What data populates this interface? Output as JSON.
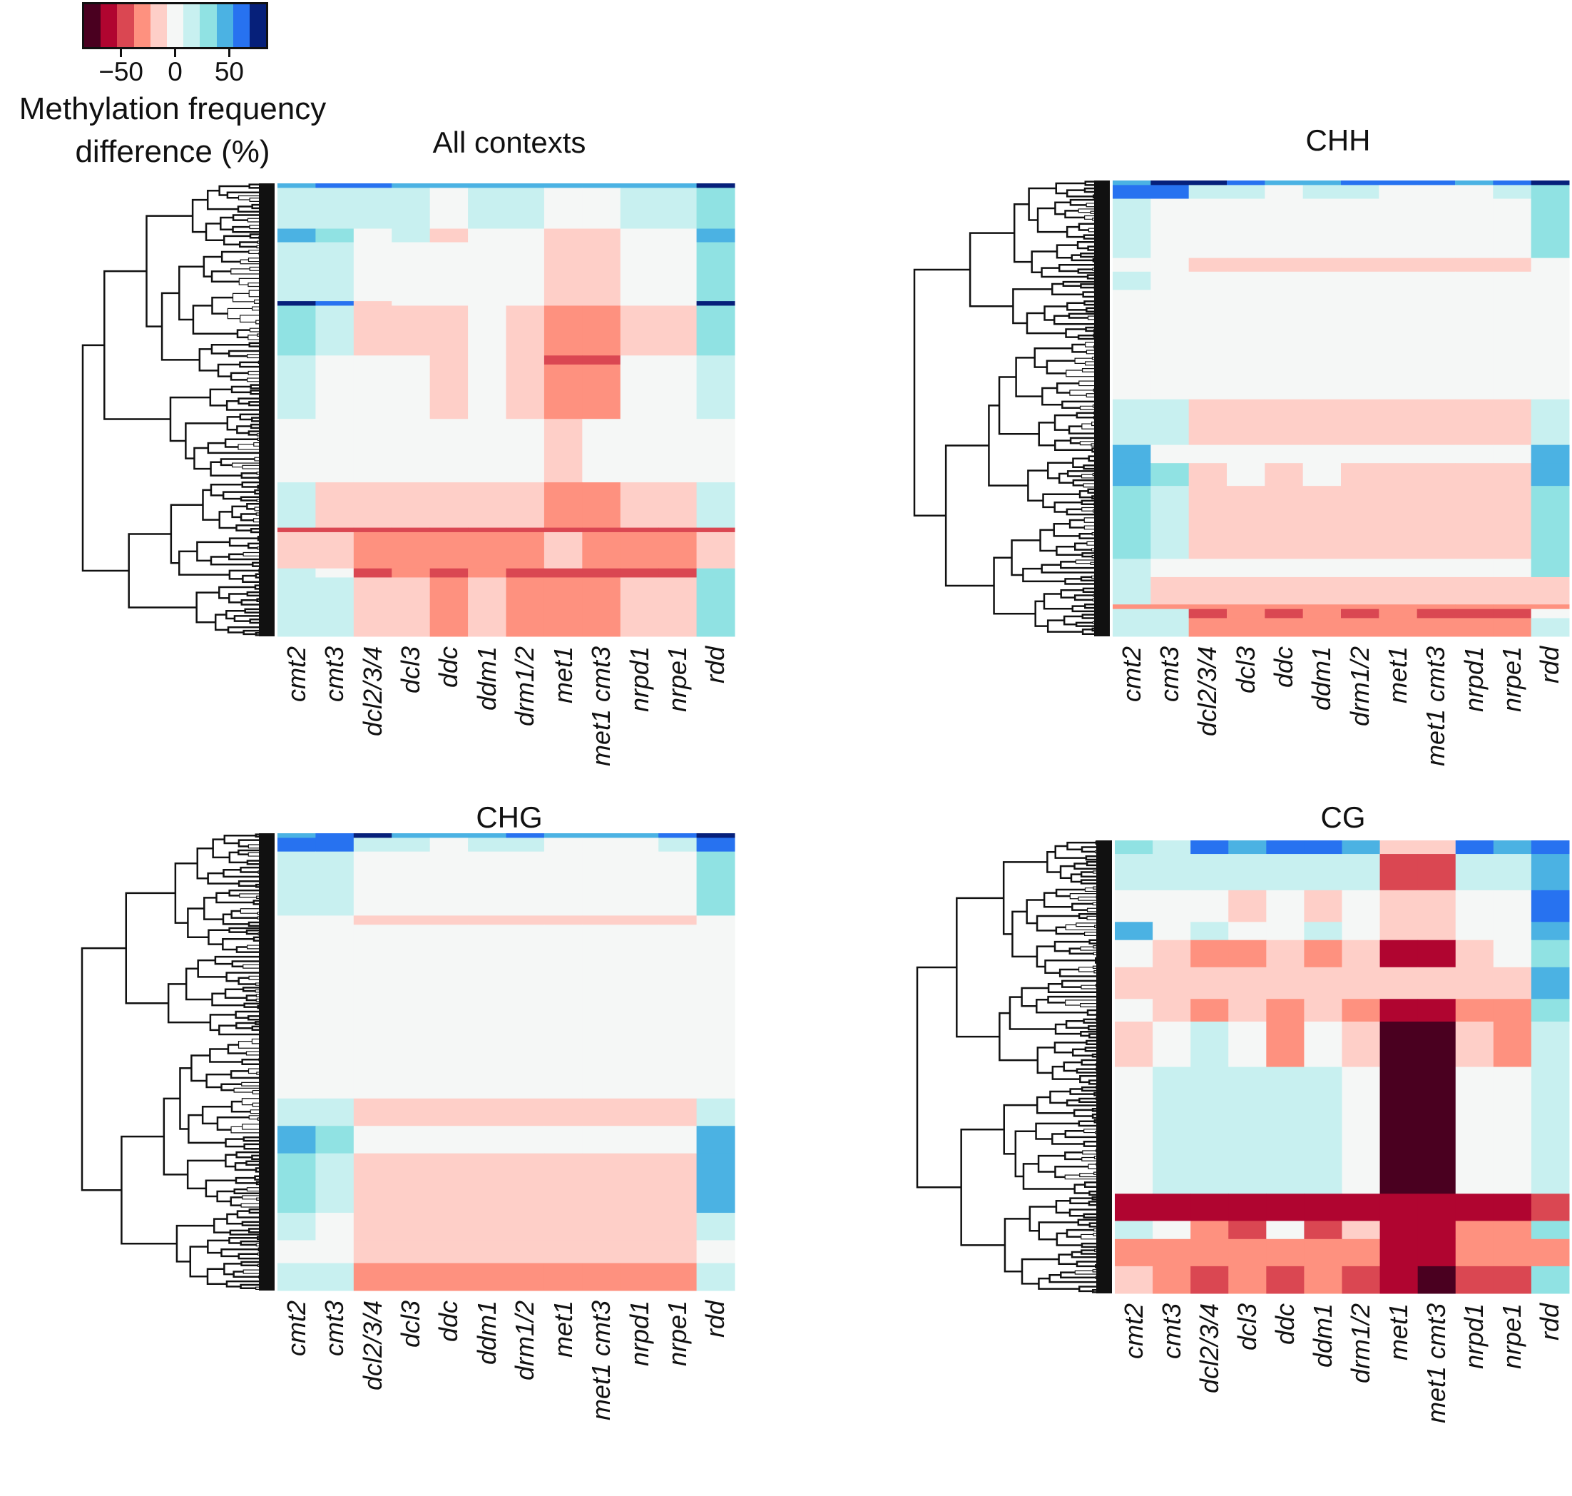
{
  "colorbar": {
    "title_line1": "Methylation frequency",
    "title_line2": "difference (%)",
    "ticks": [
      {
        "value": -50,
        "label": "−50"
      },
      {
        "value": 0,
        "label": "0"
      },
      {
        "value": 50,
        "label": "50"
      }
    ],
    "range": [
      -84,
      84
    ],
    "colors": [
      "#4a0020",
      "#b00530",
      "#da4752",
      "#fe917f",
      "#fecfc8",
      "#f5f7f6",
      "#c8f0f0",
      "#90e2e3",
      "#4bb2e3",
      "#2772f0",
      "#06207a"
    ]
  },
  "chart_data": [
    {
      "type": "heatmap",
      "title": "All contexts",
      "columns": [
        "cmt2",
        "cmt3",
        "dcl2/3/4",
        "dcl3",
        "ddc",
        "ddm1",
        "drm1/2",
        "met1",
        "met1 cmt3",
        "nrpd1",
        "nrpe1",
        "rdd"
      ],
      "row_count": 100,
      "blocks": [
        {
          "rows": [
            0,
            1
          ],
          "values": [
            45,
            60,
            60,
            45,
            45,
            45,
            45,
            45,
            45,
            45,
            45,
            75
          ]
        },
        {
          "rows": [
            1,
            10
          ],
          "values": [
            15,
            15,
            15,
            15,
            0,
            15,
            15,
            0,
            0,
            15,
            15,
            30
          ]
        },
        {
          "rows": [
            10,
            13
          ],
          "values": [
            45,
            30,
            0,
            15,
            -15,
            0,
            0,
            -15,
            -15,
            0,
            0,
            45
          ]
        },
        {
          "rows": [
            13,
            26
          ],
          "values": [
            15,
            15,
            0,
            0,
            0,
            0,
            0,
            -15,
            -15,
            0,
            0,
            30
          ]
        },
        {
          "rows": [
            26,
            27
          ],
          "values": [
            75,
            60,
            -15,
            0,
            0,
            0,
            0,
            -15,
            -15,
            0,
            0,
            75
          ]
        },
        {
          "rows": [
            27,
            38
          ],
          "values": [
            30,
            15,
            -15,
            -15,
            -15,
            0,
            -15,
            -30,
            -30,
            -15,
            -15,
            30
          ]
        },
        {
          "rows": [
            38,
            40
          ],
          "values": [
            15,
            0,
            0,
            0,
            -15,
            0,
            -15,
            -45,
            -45,
            0,
            0,
            15
          ]
        },
        {
          "rows": [
            40,
            52
          ],
          "values": [
            15,
            0,
            0,
            0,
            -15,
            0,
            -15,
            -30,
            -30,
            0,
            0,
            15
          ]
        },
        {
          "rows": [
            52,
            66
          ],
          "values": [
            0,
            0,
            0,
            0,
            0,
            0,
            0,
            -15,
            0,
            0,
            0,
            0
          ]
        },
        {
          "rows": [
            66,
            76
          ],
          "values": [
            15,
            -15,
            -15,
            -15,
            -15,
            -15,
            -15,
            -30,
            -30,
            -15,
            -15,
            15
          ]
        },
        {
          "rows": [
            76,
            77
          ],
          "values": [
            -45,
            -45,
            -45,
            -45,
            -45,
            -45,
            -45,
            -45,
            -45,
            -45,
            -45,
            -45
          ]
        },
        {
          "rows": [
            77,
            85
          ],
          "values": [
            -15,
            -15,
            -30,
            -30,
            -30,
            -30,
            -30,
            -15,
            -30,
            -30,
            -30,
            -15
          ]
        },
        {
          "rows": [
            85,
            87
          ],
          "values": [
            15,
            0,
            -45,
            -30,
            -45,
            -30,
            -45,
            -45,
            -45,
            -45,
            -45,
            30
          ]
        },
        {
          "rows": [
            87,
            100
          ],
          "values": [
            15,
            15,
            -15,
            -15,
            -30,
            -15,
            -30,
            -30,
            -30,
            -15,
            -15,
            30
          ]
        }
      ]
    },
    {
      "type": "heatmap",
      "title": "CHH",
      "columns": [
        "cmt2",
        "cmt3",
        "dcl2/3/4",
        "dcl3",
        "ddc",
        "ddm1",
        "drm1/2",
        "met1",
        "met1 cmt3",
        "nrpd1",
        "nrpe1",
        "rdd"
      ],
      "row_count": 100,
      "blocks": [
        {
          "rows": [
            0,
            1
          ],
          "values": [
            45,
            75,
            75,
            60,
            45,
            45,
            60,
            60,
            60,
            45,
            60,
            75
          ]
        },
        {
          "rows": [
            1,
            4
          ],
          "values": [
            60,
            60,
            15,
            15,
            0,
            15,
            15,
            0,
            0,
            0,
            15,
            30
          ]
        },
        {
          "rows": [
            4,
            17
          ],
          "values": [
            15,
            0,
            0,
            0,
            0,
            0,
            0,
            0,
            0,
            0,
            0,
            30
          ]
        },
        {
          "rows": [
            17,
            20
          ],
          "values": [
            0,
            0,
            -15,
            -15,
            -15,
            -15,
            -15,
            -15,
            -15,
            -15,
            -15,
            0
          ]
        },
        {
          "rows": [
            20,
            24
          ],
          "values": [
            15,
            0,
            0,
            0,
            0,
            0,
            0,
            0,
            0,
            0,
            0,
            0
          ]
        },
        {
          "rows": [
            24,
            48
          ],
          "values": [
            0,
            0,
            0,
            0,
            0,
            0,
            0,
            0,
            0,
            0,
            0,
            0
          ]
        },
        {
          "rows": [
            48,
            58
          ],
          "values": [
            15,
            15,
            -15,
            -15,
            -15,
            -15,
            -15,
            -15,
            -15,
            -15,
            -15,
            15
          ]
        },
        {
          "rows": [
            58,
            62
          ],
          "values": [
            45,
            0,
            0,
            0,
            0,
            0,
            0,
            0,
            0,
            0,
            0,
            45
          ]
        },
        {
          "rows": [
            62,
            67
          ],
          "values": [
            45,
            30,
            -15,
            0,
            -15,
            0,
            -15,
            -15,
            -15,
            -15,
            -15,
            45
          ]
        },
        {
          "rows": [
            67,
            83
          ],
          "values": [
            30,
            15,
            -15,
            -15,
            -15,
            -15,
            -15,
            -15,
            -15,
            -15,
            -15,
            30
          ]
        },
        {
          "rows": [
            83,
            87
          ],
          "values": [
            15,
            0,
            0,
            0,
            0,
            0,
            0,
            0,
            0,
            0,
            0,
            30
          ]
        },
        {
          "rows": [
            87,
            93
          ],
          "values": [
            15,
            -15,
            -15,
            -15,
            -15,
            -15,
            -15,
            -15,
            -15,
            -15,
            -15,
            -15
          ]
        },
        {
          "rows": [
            93,
            94
          ],
          "values": [
            -30,
            -30,
            -30,
            -30,
            -30,
            -30,
            -30,
            -30,
            -30,
            -30,
            -30,
            -30
          ]
        },
        {
          "rows": [
            94,
            96
          ],
          "values": [
            15,
            15,
            -45,
            -30,
            -45,
            -30,
            -45,
            -30,
            -45,
            -45,
            -45,
            0
          ]
        },
        {
          "rows": [
            96,
            100
          ],
          "values": [
            15,
            15,
            -30,
            -30,
            -30,
            -30,
            -30,
            -30,
            -30,
            -30,
            -30,
            15
          ]
        }
      ]
    },
    {
      "type": "heatmap",
      "title": "CHG",
      "columns": [
        "cmt2",
        "cmt3",
        "dcl2/3/4",
        "dcl3",
        "ddc",
        "ddm1",
        "drm1/2",
        "met1",
        "met1 cmt3",
        "nrpd1",
        "nrpe1",
        "rdd"
      ],
      "row_count": 100,
      "blocks": [
        {
          "rows": [
            0,
            1
          ],
          "values": [
            45,
            60,
            75,
            45,
            45,
            45,
            60,
            45,
            45,
            45,
            60,
            75
          ]
        },
        {
          "rows": [
            1,
            4
          ],
          "values": [
            60,
            60,
            15,
            15,
            0,
            15,
            15,
            0,
            0,
            0,
            15,
            60
          ]
        },
        {
          "rows": [
            4,
            18
          ],
          "values": [
            15,
            15,
            0,
            0,
            0,
            0,
            0,
            0,
            0,
            0,
            0,
            30
          ]
        },
        {
          "rows": [
            18,
            20
          ],
          "values": [
            0,
            0,
            -15,
            -15,
            -15,
            -15,
            -15,
            -15,
            -15,
            -15,
            -15,
            0
          ]
        },
        {
          "rows": [
            20,
            58
          ],
          "values": [
            0,
            0,
            0,
            0,
            0,
            0,
            0,
            0,
            0,
            0,
            0,
            0
          ]
        },
        {
          "rows": [
            58,
            64
          ],
          "values": [
            15,
            15,
            -15,
            -15,
            -15,
            -15,
            -15,
            -15,
            -15,
            -15,
            -15,
            15
          ]
        },
        {
          "rows": [
            64,
            70
          ],
          "values": [
            45,
            30,
            0,
            0,
            0,
            0,
            0,
            0,
            0,
            0,
            0,
            45
          ]
        },
        {
          "rows": [
            70,
            83
          ],
          "values": [
            30,
            15,
            -15,
            -15,
            -15,
            -15,
            -15,
            -15,
            -15,
            -15,
            -15,
            45
          ]
        },
        {
          "rows": [
            83,
            89
          ],
          "values": [
            15,
            0,
            -15,
            -15,
            -15,
            -15,
            -15,
            -15,
            -15,
            -15,
            -15,
            15
          ]
        },
        {
          "rows": [
            89,
            94
          ],
          "values": [
            0,
            0,
            -15,
            -15,
            -15,
            -15,
            -15,
            -15,
            -15,
            -15,
            -15,
            0
          ]
        },
        {
          "rows": [
            94,
            100
          ],
          "values": [
            15,
            15,
            -30,
            -30,
            -30,
            -30,
            -30,
            -30,
            -30,
            -30,
            -30,
            15
          ]
        }
      ]
    },
    {
      "type": "heatmap",
      "title": "CG",
      "columns": [
        "cmt2",
        "cmt3",
        "dcl2/3/4",
        "dcl3",
        "ddc",
        "ddm1",
        "drm1/2",
        "met1",
        "met1 cmt3",
        "nrpd1",
        "nrpe1",
        "rdd"
      ],
      "row_count": 100,
      "blocks": [
        {
          "rows": [
            0,
            3
          ],
          "values": [
            30,
            15,
            60,
            45,
            60,
            60,
            45,
            -15,
            -15,
            60,
            45,
            60
          ]
        },
        {
          "rows": [
            3,
            11
          ],
          "values": [
            15,
            15,
            15,
            15,
            15,
            15,
            15,
            -45,
            -45,
            15,
            15,
            45
          ]
        },
        {
          "rows": [
            11,
            18
          ],
          "values": [
            0,
            0,
            0,
            -15,
            0,
            -15,
            0,
            -15,
            -15,
            0,
            0,
            60
          ]
        },
        {
          "rows": [
            18,
            22
          ],
          "values": [
            45,
            0,
            15,
            0,
            0,
            15,
            0,
            -15,
            -15,
            0,
            0,
            45
          ]
        },
        {
          "rows": [
            22,
            28
          ],
          "values": [
            0,
            -15,
            -30,
            -30,
            -15,
            -30,
            -15,
            -60,
            -60,
            -15,
            0,
            30
          ]
        },
        {
          "rows": [
            28,
            35
          ],
          "values": [
            -15,
            -15,
            -15,
            -15,
            -15,
            -15,
            -15,
            -15,
            -15,
            -15,
            -15,
            45
          ]
        },
        {
          "rows": [
            35,
            40
          ],
          "values": [
            0,
            -15,
            -30,
            -15,
            -30,
            -15,
            -30,
            -60,
            -60,
            -30,
            -30,
            30
          ]
        },
        {
          "rows": [
            40,
            50
          ],
          "values": [
            -15,
            0,
            15,
            0,
            -30,
            0,
            -15,
            -75,
            -75,
            -15,
            -30,
            15
          ]
        },
        {
          "rows": [
            50,
            78
          ],
          "values": [
            0,
            15,
            15,
            15,
            15,
            15,
            0,
            -75,
            -75,
            0,
            0,
            15
          ]
        },
        {
          "rows": [
            78,
            84
          ],
          "values": [
            -60,
            -60,
            -60,
            -60,
            -60,
            -60,
            -60,
            -60,
            -60,
            -60,
            -60,
            -45
          ]
        },
        {
          "rows": [
            84,
            88
          ],
          "values": [
            15,
            0,
            -30,
            -45,
            0,
            -45,
            -15,
            -60,
            -60,
            -30,
            -30,
            30
          ]
        },
        {
          "rows": [
            88,
            94
          ],
          "values": [
            -30,
            -30,
            -30,
            -30,
            -30,
            -30,
            -30,
            -60,
            -60,
            -30,
            -30,
            -30
          ]
        },
        {
          "rows": [
            94,
            100
          ],
          "values": [
            -15,
            -30,
            -45,
            -30,
            -45,
            -30,
            -45,
            -60,
            -75,
            -45,
            -45,
            30
          ]
        }
      ]
    }
  ]
}
